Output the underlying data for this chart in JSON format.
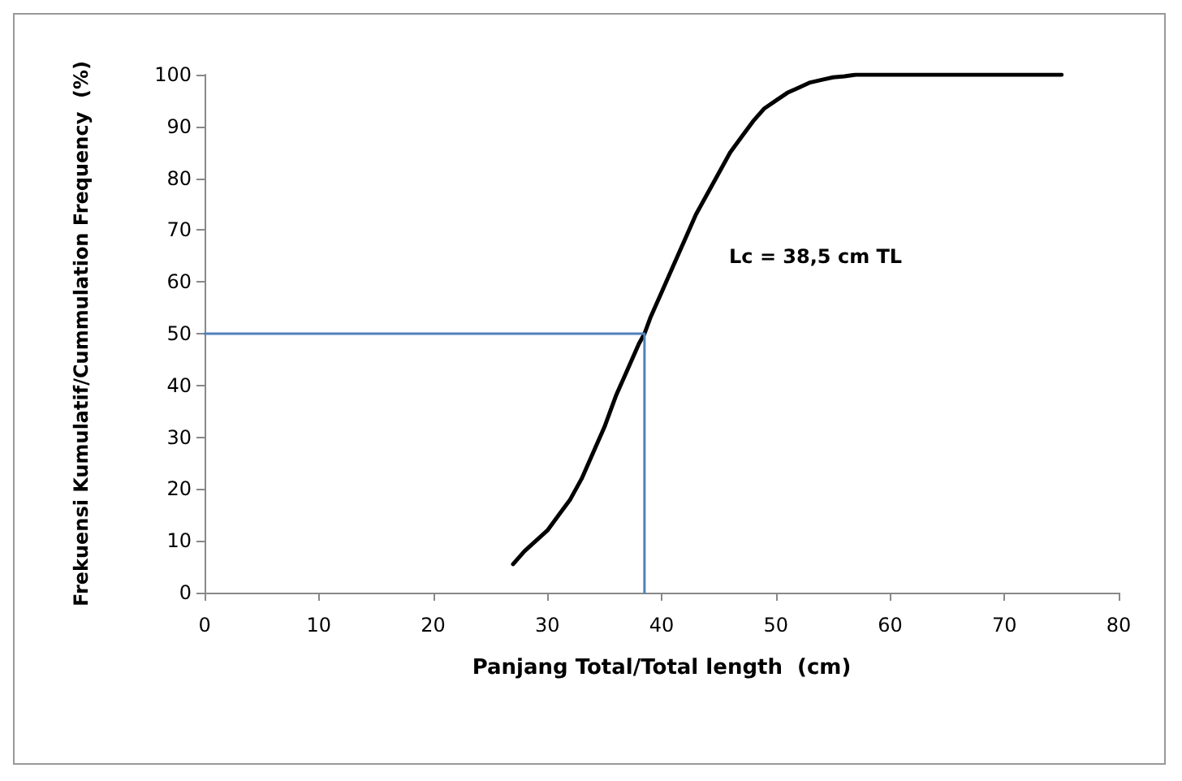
{
  "chart_data": {
    "type": "line",
    "xlabel": "Panjang Total/Total length  (cm)",
    "ylabel": "Frekuensi Kumulatif/Cummulation Frequency  (%)",
    "series": [
      {
        "color": "#000000",
        "x": [
          27,
          28,
          29,
          30,
          31,
          32,
          33,
          34,
          35,
          36,
          37,
          38,
          38.5,
          39,
          40,
          41,
          42,
          43,
          44,
          45,
          46,
          47,
          48,
          49,
          50,
          51,
          52,
          53,
          54,
          55,
          56,
          57,
          58,
          60,
          75
        ],
        "values": [
          5.5,
          8,
          10,
          12,
          15,
          18,
          22,
          27,
          32,
          38,
          43,
          48,
          50,
          53,
          58,
          63,
          68,
          73,
          77,
          81,
          85,
          88,
          91,
          93.5,
          95,
          96.5,
          97.5,
          98.5,
          99,
          99.5,
          99.7,
          100,
          100,
          100,
          100
        ]
      },
      {
        "type": "line",
        "color": "#4f81bd",
        "x": [
          0,
          38.5,
          38.5
        ],
        "values": [
          50,
          50,
          0
        ]
      }
    ],
    "annotations": [
      "Lc = 38,5 cm TL"
    ],
    "xlim": [
      0,
      80
    ],
    "xticks": [
      0,
      10,
      20,
      30,
      40,
      50,
      60,
      70,
      80
    ],
    "ylim": [
      0,
      100
    ],
    "yticks": [
      0,
      10,
      20,
      30,
      40,
      50,
      60,
      70,
      80,
      90,
      100
    ],
    "grid": false,
    "marker": "none",
    "line_style": "solid"
  }
}
